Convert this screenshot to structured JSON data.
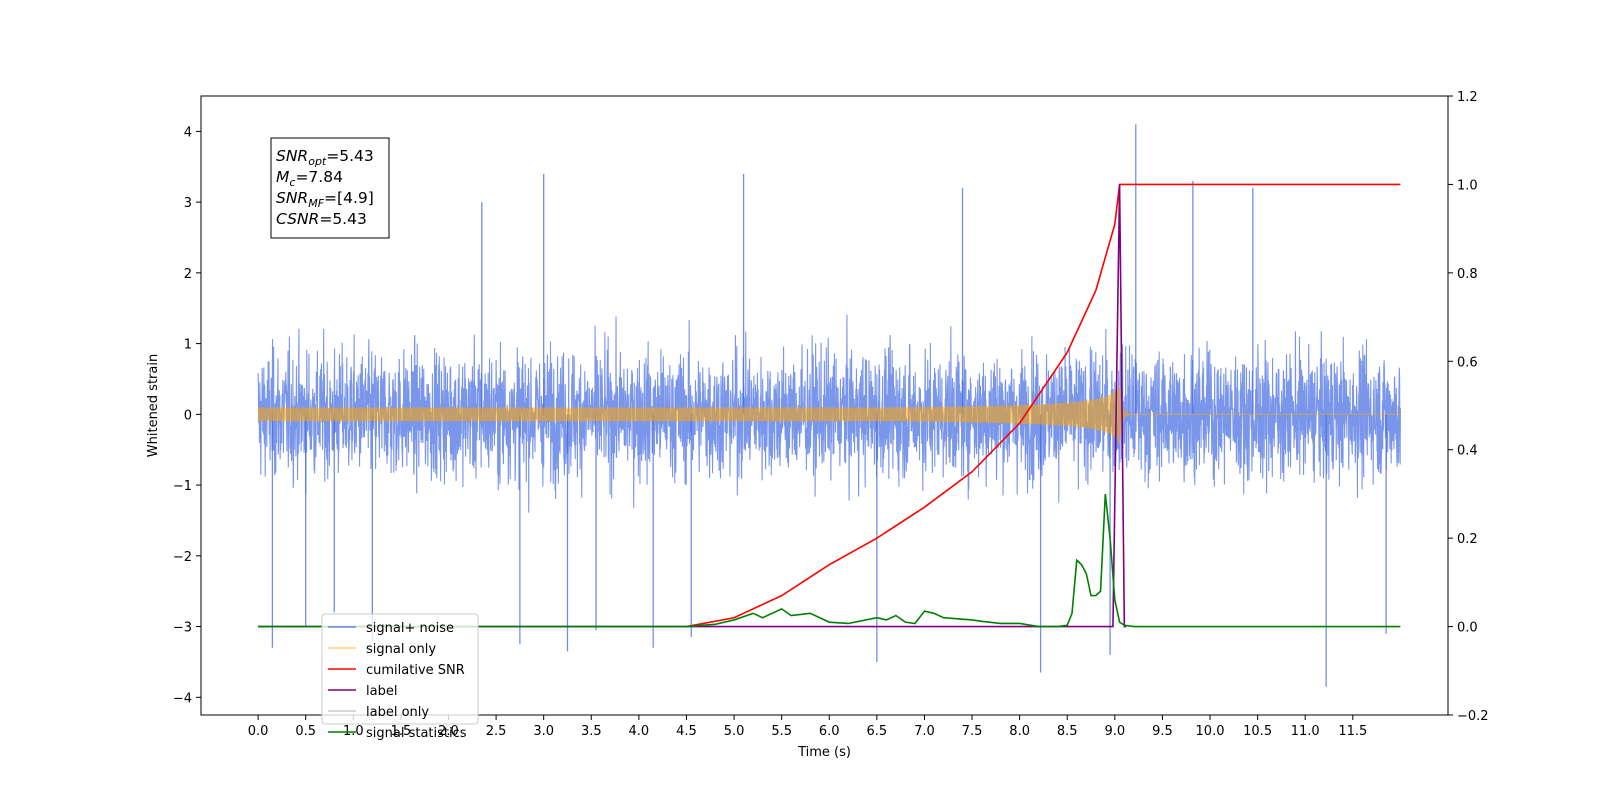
{
  "chart_data": {
    "type": "line",
    "title": "",
    "xlabel": "Time (s)",
    "ylabel": "Whitened strain",
    "y2label": "",
    "xlim": [
      -0.6,
      12.5
    ],
    "ylim": [
      -4.25,
      4.5
    ],
    "y2lim": [
      -0.2,
      1.2
    ],
    "x_ticks": [
      0.0,
      0.5,
      1.0,
      1.5,
      2.0,
      2.5,
      3.0,
      3.5,
      4.0,
      4.5,
      5.0,
      5.5,
      6.0,
      6.5,
      7.0,
      7.5,
      8.0,
      8.5,
      9.0,
      9.5,
      10.0,
      10.5,
      11.0,
      11.5
    ],
    "x_tick_labels": [
      "0.0",
      "0.5",
      "1.0",
      "1.5",
      "2.0",
      "2.5",
      "3.0",
      "3.5",
      "4.0",
      "4.5",
      "5.0",
      "5.5",
      "6.0",
      "6.5",
      "7.0",
      "7.5",
      "8.0",
      "8.5",
      "9.0",
      "9.5",
      "10.0",
      "10.5",
      "11.0",
      "11.5"
    ],
    "y_ticks": [
      -4,
      -3,
      -2,
      -1,
      0,
      1,
      2,
      3,
      4
    ],
    "y_tick_labels": [
      "−4",
      "−3",
      "−2",
      "−1",
      "0",
      "1",
      "2",
      "3",
      "4"
    ],
    "y2_ticks": [
      -0.2,
      0.0,
      0.2,
      0.4,
      0.6,
      0.8,
      1.0,
      1.2
    ],
    "y2_tick_labels": [
      "−0.2",
      "0.0",
      "0.2",
      "0.4",
      "0.6",
      "0.8",
      "1.0",
      "1.2"
    ],
    "grid": false,
    "legend_position": "lower-left",
    "annotation": {
      "lines": [
        {
          "main": "SNR",
          "sub": "opt",
          "value": "=5.43"
        },
        {
          "main": "M",
          "sub": "c",
          "value": "=7.84"
        },
        {
          "main": "SNR",
          "sub": "MF",
          "value": "=[4.9]"
        },
        {
          "main": "CSNR",
          "sub": "",
          "value": "=5.43"
        }
      ]
    },
    "series": [
      {
        "name": "signal+ noise",
        "axis": "left",
        "color": "#4169e1",
        "kind": "noise",
        "description_values": {
          "x_start": 0.0,
          "x_end": 12.0,
          "typical_band": [
            -1.7,
            2.0
          ],
          "extremes": [
            -3.85,
            4.1
          ]
        },
        "spikes": [
          [
            0.15,
            -3.3
          ],
          [
            0.5,
            -3.0
          ],
          [
            0.8,
            -2.8
          ],
          [
            1.2,
            -3.2
          ],
          [
            2.75,
            -3.25
          ],
          [
            3.0,
            3.4
          ],
          [
            3.25,
            -3.35
          ],
          [
            4.15,
            -3.3
          ],
          [
            4.55,
            -3.15
          ],
          [
            5.1,
            3.4
          ],
          [
            6.5,
            -3.5
          ],
          [
            7.4,
            3.2
          ],
          [
            8.22,
            -3.65
          ],
          [
            8.95,
            -3.4
          ],
          [
            9.22,
            4.1
          ],
          [
            9.82,
            3.3
          ],
          [
            10.45,
            3.2
          ],
          [
            11.22,
            -3.85
          ],
          [
            11.85,
            -3.1
          ],
          [
            2.35,
            3.0
          ],
          [
            3.55,
            -3.05
          ]
        ]
      },
      {
        "name": "signal only",
        "axis": "left",
        "color": "#ffa500",
        "kind": "chirp",
        "description_values": {
          "x_start": 0.0,
          "merger_time": 9.05,
          "peak_amplitude": 0.45
        }
      },
      {
        "name": "cumilative SNR",
        "axis": "right",
        "color": "#ff0000",
        "x": [
          4.5,
          5.0,
          5.5,
          6.0,
          6.5,
          7.0,
          7.5,
          8.0,
          8.5,
          8.8,
          9.0,
          9.05,
          9.06,
          12.0
        ],
        "y": [
          0.0,
          0.02,
          0.07,
          0.14,
          0.2,
          0.27,
          0.35,
          0.46,
          0.62,
          0.76,
          0.91,
          1.0,
          1.0,
          1.0
        ]
      },
      {
        "name": "label",
        "axis": "right",
        "color": "#800080",
        "x": [
          0.0,
          8.98,
          9.05,
          9.1,
          9.12
        ],
        "y": [
          0.0,
          0.0,
          1.0,
          0.0,
          0.0
        ]
      },
      {
        "name": "label only",
        "axis": "right",
        "color": "#cccccc",
        "x": [],
        "y": []
      },
      {
        "name": "signal statistics",
        "axis": "right",
        "color": "#008000",
        "x": [
          0.0,
          4.5,
          4.8,
          5.0,
          5.2,
          5.3,
          5.4,
          5.5,
          5.6,
          5.8,
          6.0,
          6.2,
          6.5,
          6.6,
          6.7,
          6.8,
          6.9,
          7.0,
          7.1,
          7.2,
          7.5,
          7.6,
          7.8,
          8.0,
          8.2,
          8.4,
          8.5,
          8.55,
          8.6,
          8.65,
          8.7,
          8.75,
          8.8,
          8.85,
          8.9,
          8.95,
          9.0,
          9.05,
          9.1,
          9.2,
          12.0
        ],
        "y": [
          0.0,
          0.0,
          0.005,
          0.015,
          0.03,
          0.02,
          0.03,
          0.04,
          0.025,
          0.03,
          0.01,
          0.007,
          0.02,
          0.015,
          0.025,
          0.01,
          0.007,
          0.035,
          0.03,
          0.02,
          0.015,
          0.012,
          0.007,
          0.007,
          0.0,
          0.0,
          0.003,
          0.03,
          0.15,
          0.14,
          0.12,
          0.07,
          0.07,
          0.08,
          0.3,
          0.2,
          0.06,
          0.01,
          0.003,
          0.0,
          0.0
        ]
      }
    ]
  }
}
